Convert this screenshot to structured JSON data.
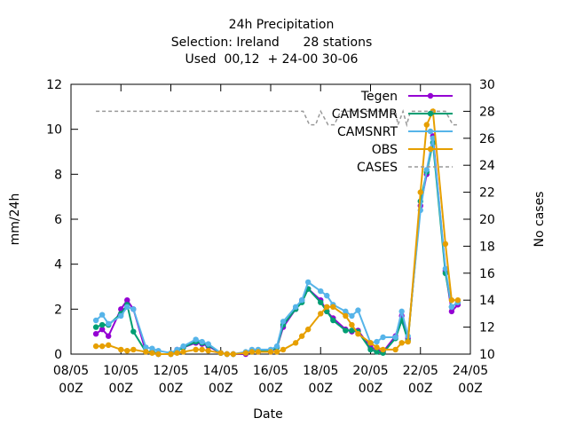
{
  "chart_data": {
    "type": "line",
    "title_lines": [
      "24h Precipitation",
      "Selection: Ireland      28 stations",
      "Used  00,12  + 24-00 30-06"
    ],
    "xlabel": "Date",
    "ylabel": "mm/24h",
    "y2label": "No cases",
    "xlim": [
      0,
      16
    ],
    "ylim": [
      0,
      12
    ],
    "y2lim": [
      10,
      30
    ],
    "x_ticks": [
      {
        "x": 0,
        "line1": "08/05",
        "line2": "00Z"
      },
      {
        "x": 2,
        "line1": "10/05",
        "line2": "00Z"
      },
      {
        "x": 4,
        "line1": "12/05",
        "line2": "00Z"
      },
      {
        "x": 6,
        "line1": "14/05",
        "line2": "00Z"
      },
      {
        "x": 8,
        "line1": "16/05",
        "line2": "00Z"
      },
      {
        "x": 10,
        "line1": "18/05",
        "line2": "00Z"
      },
      {
        "x": 12,
        "line1": "20/05",
        "line2": "00Z"
      },
      {
        "x": 14,
        "line1": "22/05",
        "line2": "00Z"
      },
      {
        "x": 16,
        "line1": "24/05",
        "line2": "00Z"
      }
    ],
    "y_ticks": [
      "0",
      "2",
      "4",
      "6",
      "8",
      "10",
      "12"
    ],
    "y2_ticks": [
      "10",
      "12",
      "14",
      "16",
      "18",
      "20",
      "22",
      "24",
      "26",
      "28",
      "30"
    ],
    "legend_position": "top-right",
    "series": [
      {
        "name": "Tegen",
        "color": "#9400d3",
        "marker": "circle",
        "axis": "y",
        "x": [
          1.0,
          1.25,
          1.5,
          2.0,
          2.25,
          2.5,
          3.0,
          3.25,
          3.5,
          4.0,
          4.25,
          4.5,
          5.0,
          5.25,
          5.5,
          6.0,
          6.25,
          6.5,
          7.0,
          7.25,
          7.5,
          8.0,
          8.25,
          8.5,
          9.0,
          9.25,
          9.5,
          10.0,
          10.25,
          10.5,
          11.0,
          11.25,
          11.5,
          12.0,
          12.25,
          12.5,
          13.0,
          13.25,
          13.5,
          14.0,
          14.25,
          14.5,
          15.0,
          15.25,
          15.5
        ],
        "y": [
          0.9,
          1.1,
          0.8,
          2.0,
          2.4,
          2.0,
          0.1,
          0.1,
          0.0,
          0.0,
          0.2,
          0.3,
          0.5,
          0.45,
          0.35,
          0.05,
          0.0,
          0.0,
          0.0,
          0.1,
          0.1,
          0.1,
          0.3,
          1.2,
          2.0,
          2.4,
          2.9,
          2.4,
          1.9,
          1.6,
          1.1,
          1.0,
          1.05,
          0.3,
          0.2,
          0.1,
          0.8,
          1.7,
          0.7,
          6.6,
          8.0,
          9.7,
          3.7,
          1.9,
          2.2
        ]
      },
      {
        "name": "CAMSMMR",
        "color": "#009e73",
        "marker": "circle",
        "axis": "y",
        "x": [
          1.0,
          1.25,
          1.5,
          2.0,
          2.25,
          2.5,
          3.0,
          3.25,
          3.5,
          4.0,
          4.25,
          4.5,
          5.0,
          5.25,
          5.5,
          6.0,
          6.25,
          6.5,
          7.0,
          7.25,
          7.5,
          8.0,
          8.25,
          8.5,
          9.0,
          9.25,
          9.5,
          10.0,
          10.25,
          10.5,
          11.0,
          11.25,
          11.5,
          12.0,
          12.25,
          12.5,
          13.0,
          13.25,
          13.5,
          14.0,
          14.25,
          14.5,
          15.0,
          15.25,
          15.5
        ],
        "y": [
          1.2,
          1.3,
          1.3,
          1.8,
          2.2,
          1.0,
          0.1,
          0.1,
          0.0,
          0.0,
          0.15,
          0.3,
          0.55,
          0.5,
          0.4,
          0.05,
          0.0,
          0.0,
          0.05,
          0.1,
          0.15,
          0.15,
          0.3,
          1.3,
          2.0,
          2.3,
          2.9,
          2.3,
          1.9,
          1.5,
          1.05,
          1.05,
          1.0,
          0.2,
          0.1,
          0.05,
          0.7,
          1.5,
          0.6,
          6.8,
          8.1,
          9.4,
          3.6,
          2.1,
          2.3
        ]
      },
      {
        "name": "CAMSNRT",
        "color": "#56b4e9",
        "marker": "circle",
        "axis": "y",
        "x": [
          1.0,
          1.25,
          1.5,
          2.0,
          2.25,
          2.5,
          3.0,
          3.25,
          3.5,
          4.0,
          4.25,
          4.5,
          5.0,
          5.25,
          5.5,
          6.0,
          6.25,
          6.5,
          7.0,
          7.25,
          7.5,
          8.0,
          8.25,
          8.5,
          9.0,
          9.25,
          9.5,
          10.0,
          10.25,
          10.5,
          11.0,
          11.25,
          11.5,
          12.0,
          12.25,
          12.5,
          13.0,
          13.25,
          13.5,
          14.0,
          14.25,
          14.5,
          15.0,
          15.25,
          15.5
        ],
        "y": [
          1.5,
          1.75,
          1.35,
          1.7,
          2.1,
          2.0,
          0.3,
          0.25,
          0.15,
          0.05,
          0.2,
          0.35,
          0.65,
          0.55,
          0.45,
          0.05,
          0.0,
          0.0,
          0.1,
          0.2,
          0.2,
          0.2,
          0.35,
          1.45,
          2.1,
          2.4,
          3.2,
          2.8,
          2.6,
          2.2,
          1.9,
          1.7,
          1.95,
          0.5,
          0.55,
          0.75,
          0.75,
          1.9,
          0.8,
          6.4,
          8.2,
          9.6,
          3.8,
          2.1,
          2.3
        ]
      },
      {
        "name": "OBS",
        "color": "#e69f00",
        "marker": "circle",
        "axis": "y",
        "x": [
          1.0,
          1.25,
          1.5,
          2.0,
          2.25,
          2.5,
          3.0,
          3.25,
          3.5,
          4.0,
          4.25,
          4.5,
          5.0,
          5.25,
          5.5,
          6.0,
          6.25,
          6.5,
          7.0,
          7.25,
          7.5,
          8.0,
          8.25,
          8.5,
          9.0,
          9.25,
          9.5,
          10.0,
          10.25,
          10.5,
          11.0,
          11.25,
          11.5,
          12.0,
          12.25,
          12.5,
          13.0,
          13.25,
          13.5,
          14.0,
          14.25,
          14.5,
          15.0,
          15.25,
          15.5
        ],
        "y": [
          0.35,
          0.35,
          0.4,
          0.2,
          0.15,
          0.2,
          0.1,
          0.05,
          0.0,
          0.0,
          0.05,
          0.1,
          0.2,
          0.2,
          0.15,
          0.05,
          0.0,
          0.0,
          0.05,
          0.1,
          0.1,
          0.1,
          0.1,
          0.2,
          0.5,
          0.8,
          1.1,
          1.8,
          2.1,
          2.1,
          1.7,
          1.3,
          0.9,
          0.5,
          0.3,
          0.2,
          0.2,
          0.5,
          0.55,
          7.2,
          10.2,
          10.8,
          4.9,
          2.4,
          2.4
        ]
      },
      {
        "name": "CASES",
        "color": "#999999",
        "dash": true,
        "axis": "y2",
        "x": [
          1.0,
          9.0,
          9.3,
          9.55,
          9.8,
          10.0,
          10.3,
          10.55,
          10.8,
          11.0,
          12.0,
          13.0,
          13.1,
          13.3,
          13.45,
          13.6,
          14.0,
          15.0,
          15.3,
          15.5
        ],
        "y": [
          28,
          28,
          28,
          27,
          27,
          28,
          27,
          27,
          28,
          28,
          28,
          28,
          27,
          28,
          27,
          28,
          28,
          28,
          27,
          27
        ]
      }
    ]
  }
}
